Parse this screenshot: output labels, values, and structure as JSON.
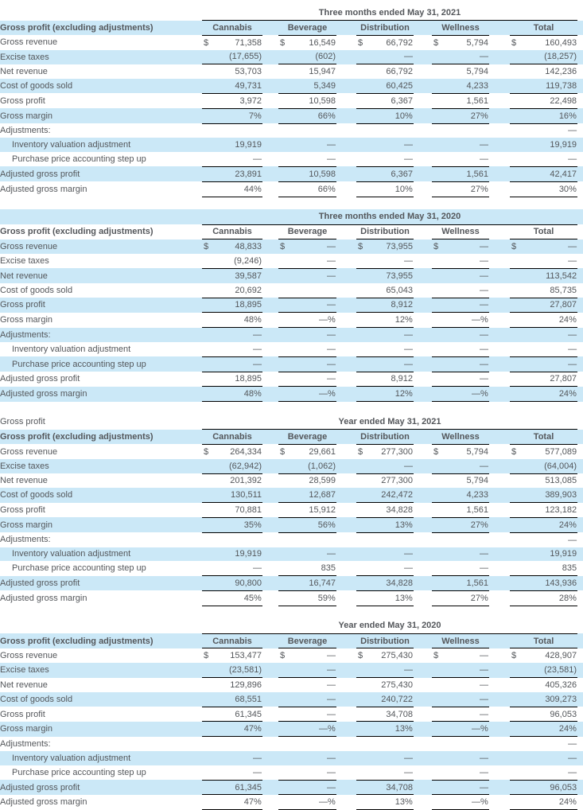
{
  "style": {
    "highlight": "#cbe8f7",
    "text_color": "#54575b",
    "line_color": "#000000"
  },
  "columns": [
    "Cannabis",
    "Beverage",
    "Distribution",
    "Wellness",
    "Total"
  ],
  "header_label": "Gross profit (excluding adjustments)",
  "tables": [
    {
      "title": "Three months ended May 31, 2021",
      "left_title": "",
      "title_row_highlighted": false,
      "rows": [
        {
          "label": "Gross revenue",
          "indent": false,
          "dollar": true,
          "line_below": false,
          "values": [
            "71,358",
            "16,549",
            "66,792",
            "5,794",
            "160,493"
          ]
        },
        {
          "label": "Excise taxes",
          "indent": false,
          "dollar": false,
          "line_below": true,
          "values": [
            "(17,655)",
            "(602)",
            "—",
            "—",
            "(18,257)"
          ]
        },
        {
          "label": "Net revenue",
          "indent": false,
          "dollar": false,
          "line_below": false,
          "values": [
            "53,703",
            "15,947",
            "66,792",
            "5,794",
            "142,236"
          ]
        },
        {
          "label": "Cost of goods sold",
          "indent": false,
          "dollar": false,
          "line_below": true,
          "values": [
            "49,731",
            "5,349",
            "60,425",
            "4,233",
            "119,738"
          ]
        },
        {
          "label": "Gross profit",
          "indent": false,
          "dollar": false,
          "line_below": true,
          "values": [
            "3,972",
            "10,598",
            "6,367",
            "1,561",
            "22,498"
          ]
        },
        {
          "label": "Gross margin",
          "indent": false,
          "dollar": false,
          "line_below": true,
          "values": [
            "7%",
            "66%",
            "10%",
            "27%",
            "16%"
          ]
        },
        {
          "label": "Adjustments:",
          "indent": false,
          "dollar": false,
          "line_below": false,
          "values": [
            "",
            "",
            "",
            "",
            "—"
          ]
        },
        {
          "label": "Inventory valuation adjustment",
          "indent": true,
          "dollar": false,
          "line_below": false,
          "values": [
            "19,919",
            "—",
            "—",
            "—",
            "19,919"
          ]
        },
        {
          "label": "Purchase price accounting step up",
          "indent": true,
          "dollar": false,
          "line_below": true,
          "values": [
            "—",
            "—",
            "—",
            "—",
            "—"
          ]
        },
        {
          "label": "Adjusted gross profit",
          "indent": false,
          "dollar": false,
          "line_below": true,
          "values": [
            "23,891",
            "10,598",
            "6,367",
            "1,561",
            "42,417"
          ]
        },
        {
          "label": "Adjusted gross margin",
          "indent": false,
          "dollar": false,
          "line_below": true,
          "values": [
            "44%",
            "66%",
            "10%",
            "27%",
            "30%"
          ]
        }
      ]
    },
    {
      "title": "Three months ended May 31, 2020",
      "left_title": "",
      "title_row_highlighted": true,
      "rows": [
        {
          "label": "Gross revenue",
          "indent": false,
          "dollar": true,
          "line_below": false,
          "values": [
            "48,833",
            "—",
            "73,955",
            "—",
            "—"
          ]
        },
        {
          "label": "Excise taxes",
          "indent": false,
          "dollar": false,
          "line_below": true,
          "values": [
            "(9,246)",
            "—",
            "—",
            "—",
            "—"
          ]
        },
        {
          "label": "Net revenue",
          "indent": false,
          "dollar": false,
          "line_below": false,
          "values": [
            "39,587",
            "—",
            "73,955",
            "—",
            "113,542"
          ]
        },
        {
          "label": "Cost of goods sold",
          "indent": false,
          "dollar": false,
          "line_below": true,
          "values": [
            "20,692",
            "",
            "65,043",
            "—",
            "85,735"
          ]
        },
        {
          "label": "Gross profit",
          "indent": false,
          "dollar": false,
          "line_below": true,
          "values": [
            "18,895",
            "—",
            "8,912",
            "—",
            "27,807"
          ]
        },
        {
          "label": "Gross margin",
          "indent": false,
          "dollar": false,
          "line_below": true,
          "values": [
            "48%",
            "—%",
            "12%",
            "—%",
            "24%"
          ]
        },
        {
          "label": "Adjustments:",
          "indent": false,
          "dollar": false,
          "line_below": false,
          "values": [
            "—",
            "—",
            "—",
            "—",
            "—"
          ]
        },
        {
          "label": "Inventory valuation adjustment",
          "indent": true,
          "dollar": false,
          "line_below": true,
          "values": [
            "—",
            "—",
            "—",
            "—",
            "—"
          ]
        },
        {
          "label": "Purchase price accounting step up",
          "indent": true,
          "dollar": false,
          "line_below": true,
          "values": [
            "—",
            "—",
            "—",
            "—",
            "—"
          ]
        },
        {
          "label": "Adjusted gross profit",
          "indent": false,
          "dollar": false,
          "line_below": true,
          "values": [
            "18,895",
            "—",
            "8,912",
            "—",
            "27,807"
          ]
        },
        {
          "label": "Adjusted gross margin",
          "indent": false,
          "dollar": false,
          "line_below": true,
          "values": [
            "48%",
            "—%",
            "12%",
            "—%",
            "24%"
          ]
        }
      ]
    },
    {
      "title": "Year ended May 31, 2021",
      "left_title": "Gross profit",
      "title_row_highlighted": false,
      "rows": [
        {
          "label": "Gross revenue",
          "indent": false,
          "dollar": true,
          "line_below": false,
          "values": [
            "264,334",
            "29,661",
            "277,300",
            "5,794",
            "577,089"
          ]
        },
        {
          "label": "Excise taxes",
          "indent": false,
          "dollar": false,
          "line_below": true,
          "values": [
            "(62,942)",
            "(1,062)",
            "—",
            "—",
            "(64,004)"
          ]
        },
        {
          "label": "Net revenue",
          "indent": false,
          "dollar": false,
          "line_below": false,
          "values": [
            "201,392",
            "28,599",
            "277,300",
            "5,794",
            "513,085"
          ]
        },
        {
          "label": "Cost of goods sold",
          "indent": false,
          "dollar": false,
          "line_below": true,
          "values": [
            "130,511",
            "12,687",
            "242,472",
            "4,233",
            "389,903"
          ]
        },
        {
          "label": "Gross profit",
          "indent": false,
          "dollar": false,
          "line_below": true,
          "values": [
            "70,881",
            "15,912",
            "34,828",
            "1,561",
            "123,182"
          ]
        },
        {
          "label": "Gross margin",
          "indent": false,
          "dollar": false,
          "line_below": true,
          "values": [
            "35%",
            "56%",
            "13%",
            "27%",
            "24%"
          ]
        },
        {
          "label": "Adjustments:",
          "indent": false,
          "dollar": false,
          "line_below": false,
          "values": [
            "",
            "",
            "",
            "",
            "—"
          ]
        },
        {
          "label": "Inventory valuation adjustment",
          "indent": true,
          "dollar": false,
          "line_below": false,
          "values": [
            "19,919",
            "—",
            "—",
            "—",
            "19,919"
          ]
        },
        {
          "label": "Purchase price accounting step up",
          "indent": true,
          "dollar": false,
          "line_below": true,
          "values": [
            "—",
            "835",
            "—",
            "—",
            "835"
          ]
        },
        {
          "label": "Adjusted gross profit",
          "indent": false,
          "dollar": false,
          "line_below": true,
          "values": [
            "90,800",
            "16,747",
            "34,828",
            "1,561",
            "143,936"
          ]
        },
        {
          "label": "Adjusted gross margin",
          "indent": false,
          "dollar": false,
          "line_below": true,
          "values": [
            "45%",
            "59%",
            "13%",
            "27%",
            "28%"
          ]
        }
      ]
    },
    {
      "title": "Year ended May 31, 2020",
      "left_title": "",
      "title_row_highlighted": false,
      "rows": [
        {
          "label": "Gross revenue",
          "indent": false,
          "dollar": true,
          "line_below": false,
          "values": [
            "153,477",
            "—",
            "275,430",
            "—",
            "428,907"
          ]
        },
        {
          "label": "Excise taxes",
          "indent": false,
          "dollar": false,
          "line_below": true,
          "values": [
            "(23,581)",
            "—",
            "—",
            "—",
            "(23,581)"
          ]
        },
        {
          "label": "Net revenue",
          "indent": false,
          "dollar": false,
          "line_below": false,
          "values": [
            "129,896",
            "—",
            "275,430",
            "—",
            "405,326"
          ]
        },
        {
          "label": "Cost of goods sold",
          "indent": false,
          "dollar": false,
          "line_below": true,
          "values": [
            "68,551",
            "—",
            "240,722",
            "—",
            "309,273"
          ]
        },
        {
          "label": "Gross profit",
          "indent": false,
          "dollar": false,
          "line_below": true,
          "values": [
            "61,345",
            "—",
            "34,708",
            "—",
            "96,053"
          ]
        },
        {
          "label": "Gross margin",
          "indent": false,
          "dollar": false,
          "line_below": true,
          "values": [
            "47%",
            "—%",
            "13%",
            "—%",
            "24%"
          ]
        },
        {
          "label": "Adjustments:",
          "indent": false,
          "dollar": false,
          "line_below": false,
          "values": [
            "",
            "",
            "",
            "",
            "—"
          ]
        },
        {
          "label": "Inventory valuation adjustment",
          "indent": true,
          "dollar": false,
          "line_below": false,
          "values": [
            "—",
            "—",
            "—",
            "—",
            "—"
          ]
        },
        {
          "label": "Purchase price accounting step up",
          "indent": true,
          "dollar": false,
          "line_below": true,
          "values": [
            "—",
            "—",
            "—",
            "—",
            "—"
          ]
        },
        {
          "label": "Adjusted gross profit",
          "indent": false,
          "dollar": false,
          "line_below": true,
          "values": [
            "61,345",
            "—",
            "34,708",
            "—",
            "96,053"
          ]
        },
        {
          "label": "Adjusted gross margin",
          "indent": false,
          "dollar": false,
          "line_below": true,
          "values": [
            "47%",
            "—%",
            "13%",
            "—%",
            "24%"
          ]
        }
      ]
    }
  ]
}
